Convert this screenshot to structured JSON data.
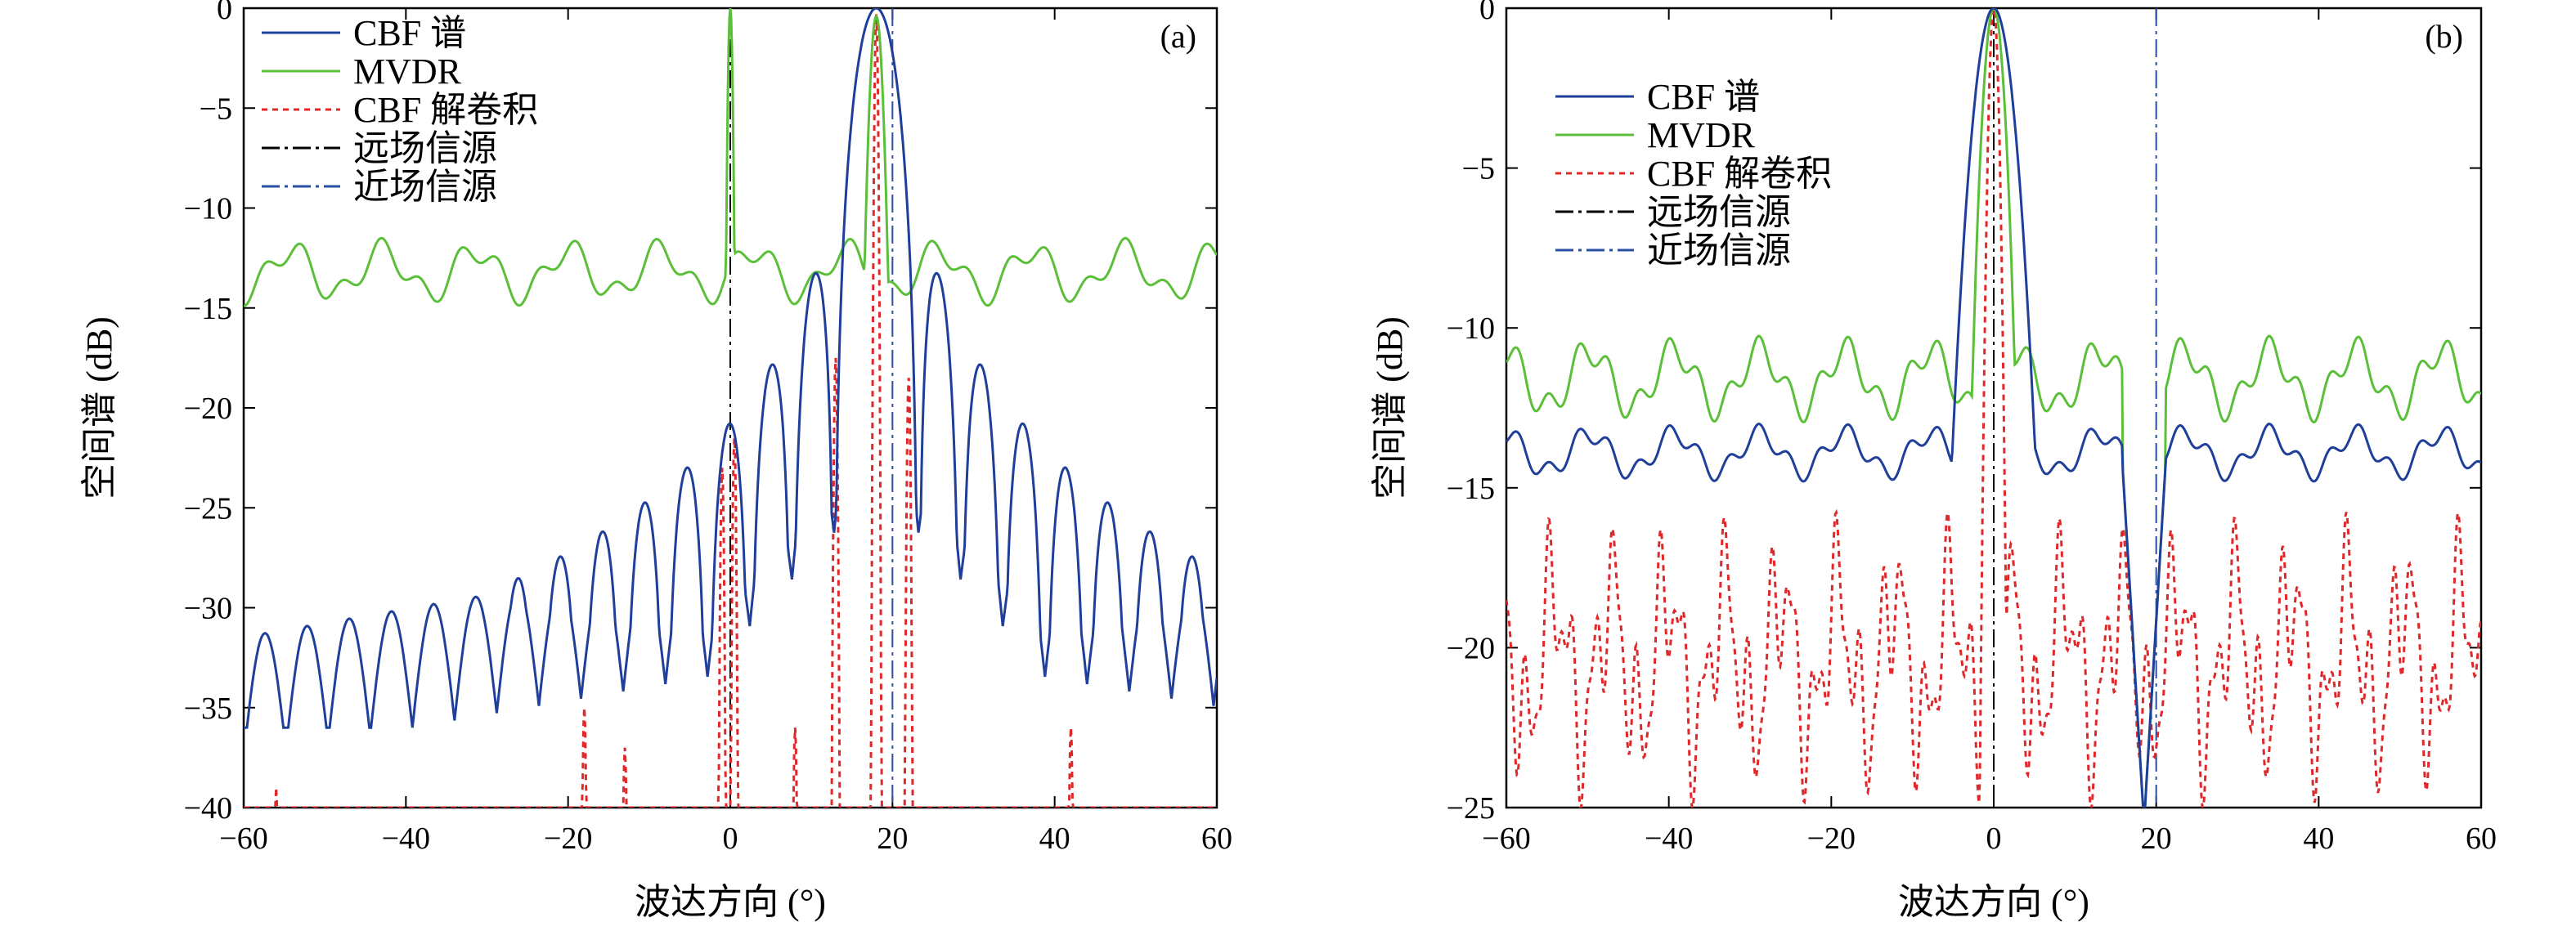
{
  "colors": {
    "cbf": "#1f3f9a",
    "mvdr": "#5cbf3a",
    "deconv": "#e0272a",
    "far_marker": "#000000",
    "near_marker": "#2a4fa0"
  },
  "chart_data": [
    {
      "type": "line",
      "panel_label": "(a)",
      "xlabel": "波达方向 (°)",
      "ylabel": "空间谱 (dB)",
      "xlim": [
        -60,
        60
      ],
      "ylim": [
        -40,
        0
      ],
      "xticks": [
        -60,
        -40,
        -20,
        0,
        20,
        40,
        60
      ],
      "yticks": [
        0,
        -5,
        -10,
        -15,
        -20,
        -25,
        -30,
        -35,
        -40
      ],
      "grid": false,
      "legend_position": "top-left",
      "legend": [
        "CBF 谱",
        "MVDR",
        "CBF 解卷积",
        "远场信源",
        "近场信源"
      ],
      "markers": {
        "far_source_x": 0,
        "near_source_x": 20
      },
      "series": [
        {
          "name": "CBF 谱",
          "style": "solid",
          "color_key": "cbf",
          "generator": {
            "kind": "cbf",
            "peak": 18,
            "width": 5.2,
            "floor": -36,
            "side_base": -28.2,
            "side_slope": 0.07,
            "bump_center": 0,
            "bump_height": 0
          }
        },
        {
          "name": "MVDR",
          "style": "solid",
          "color_key": "mvdr",
          "generator": {
            "kind": "mvdr",
            "base": -13.2,
            "peaks": [
              [
                0,
                0,
                0.5
              ],
              [
                18,
                -0.4,
                1.4
              ]
            ]
          }
        },
        {
          "name": "CBF 解卷积",
          "style": "dotted",
          "color_key": "deconv",
          "generator": {
            "kind": "spikes",
            "baseline": -40,
            "spikes": [
              [
                -56,
                -39
              ],
              [
                -40,
                -40
              ],
              [
                -18,
                -35
              ],
              [
                -13,
                -37
              ],
              [
                -1,
                -23
              ],
              [
                0.5,
                -21.5
              ],
              [
                8,
                -36
              ],
              [
                13,
                -17.5
              ],
              [
                18,
                -0.3
              ],
              [
                22,
                -18.5
              ],
              [
                42,
                -36
              ]
            ]
          }
        }
      ]
    },
    {
      "type": "line",
      "panel_label": "(b)",
      "xlabel": "波达方向 (°)",
      "ylabel": "空间谱 (dB)",
      "xlim": [
        -60,
        60
      ],
      "ylim": [
        -25,
        0
      ],
      "xticks": [
        -60,
        -40,
        -20,
        0,
        20,
        40,
        60
      ],
      "yticks": [
        0,
        -5,
        -10,
        -15,
        -20,
        -25
      ],
      "grid": false,
      "legend_position": "top-left",
      "legend": [
        "CBF 谱",
        "MVDR",
        "CBF 解卷积",
        "远场信源",
        "近场信源"
      ],
      "markers": {
        "far_source_x": 0,
        "near_source_x": 20
      },
      "series": [
        {
          "name": "CBF 谱",
          "style": "solid",
          "color_key": "cbf",
          "generator": {
            "kind": "wavy",
            "base": -13.9,
            "amp": 0.6,
            "peak": 0,
            "peak_width": 1.6,
            "dip": 18.5
          }
        },
        {
          "name": "MVDR",
          "style": "solid",
          "color_key": "mvdr",
          "generator": {
            "kind": "wavy",
            "base": -11.6,
            "amp": 0.9,
            "peak": 0,
            "peak_width": 0.9,
            "dip": 18.5
          }
        },
        {
          "name": "CBF 解卷积",
          "style": "dotted",
          "color_key": "deconv",
          "generator": {
            "kind": "noisy",
            "base": -20.4,
            "amp": 2.2,
            "peak": 0
          }
        }
      ]
    }
  ]
}
